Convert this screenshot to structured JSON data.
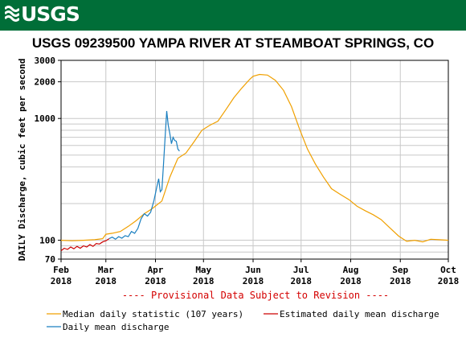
{
  "brand": {
    "logo_text": "USGS",
    "banner_color": "#006e38"
  },
  "chart_data": {
    "type": "line",
    "title": "USGS 09239500 YAMPA RIVER AT STEAMBOAT SPRINGS, CO",
    "ylabel": "DAILY Discharge, cubic feet per second",
    "xlabel": "",
    "y_scale": "log",
    "ylim": [
      70,
      3000
    ],
    "xlim": [
      "2018-02-01",
      "2018-10-01"
    ],
    "y_ticks": [
      70,
      100,
      1000,
      2000,
      3000
    ],
    "x_ticks": [
      {
        "line1": "Feb",
        "line2": "2018",
        "date": "2018-02-01"
      },
      {
        "line1": "Mar",
        "line2": "2018",
        "date": "2018-03-01"
      },
      {
        "line1": "Apr",
        "line2": "2018",
        "date": "2018-04-01"
      },
      {
        "line1": "May",
        "line2": "2018",
        "date": "2018-05-01"
      },
      {
        "line1": "Jun",
        "line2": "2018",
        "date": "2018-06-01"
      },
      {
        "line1": "Jul",
        "line2": "2018",
        "date": "2018-07-01"
      },
      {
        "line1": "Aug",
        "line2": "2018",
        "date": "2018-08-01"
      },
      {
        "line1": "Sep",
        "line2": "2018",
        "date": "2018-09-01"
      },
      {
        "line1": "Oct",
        "line2": "2018",
        "date": "2018-10-01"
      }
    ],
    "grid": true,
    "legend_position": "bottom",
    "annotation": "---- Provisional Data Subject to Revision ----",
    "series": [
      {
        "name": "Median daily statistic (107 years)",
        "color": "#f0a000",
        "points": [
          [
            "2018-02-01",
            100
          ],
          [
            "2018-02-08",
            99
          ],
          [
            "2018-02-15",
            100
          ],
          [
            "2018-02-22",
            101
          ],
          [
            "2018-02-27",
            103
          ],
          [
            "2018-03-01",
            112
          ],
          [
            "2018-03-05",
            114
          ],
          [
            "2018-03-10",
            118
          ],
          [
            "2018-03-15",
            130
          ],
          [
            "2018-03-20",
            145
          ],
          [
            "2018-03-25",
            165
          ],
          [
            "2018-03-30",
            182
          ],
          [
            "2018-04-05",
            210
          ],
          [
            "2018-04-10",
            330
          ],
          [
            "2018-04-15",
            470
          ],
          [
            "2018-04-20",
            520
          ],
          [
            "2018-04-25",
            640
          ],
          [
            "2018-04-30",
            800
          ],
          [
            "2018-05-05",
            880
          ],
          [
            "2018-05-10",
            950
          ],
          [
            "2018-05-15",
            1180
          ],
          [
            "2018-05-20",
            1480
          ],
          [
            "2018-05-25",
            1780
          ],
          [
            "2018-05-30",
            2100
          ],
          [
            "2018-06-01",
            2220
          ],
          [
            "2018-06-05",
            2300
          ],
          [
            "2018-06-10",
            2270
          ],
          [
            "2018-06-15",
            2050
          ],
          [
            "2018-06-20",
            1700
          ],
          [
            "2018-06-25",
            1250
          ],
          [
            "2018-06-30",
            820
          ],
          [
            "2018-07-05",
            560
          ],
          [
            "2018-07-10",
            420
          ],
          [
            "2018-07-15",
            330
          ],
          [
            "2018-07-20",
            265
          ],
          [
            "2018-07-25",
            240
          ],
          [
            "2018-07-31",
            215
          ],
          [
            "2018-08-05",
            190
          ],
          [
            "2018-08-10",
            175
          ],
          [
            "2018-08-15",
            162
          ],
          [
            "2018-08-20",
            148
          ],
          [
            "2018-08-25",
            128
          ],
          [
            "2018-08-31",
            108
          ],
          [
            "2018-09-05",
            98
          ],
          [
            "2018-09-10",
            100
          ],
          [
            "2018-09-15",
            97
          ],
          [
            "2018-09-20",
            102
          ],
          [
            "2018-09-25",
            101
          ],
          [
            "2018-10-01",
            100
          ]
        ]
      },
      {
        "name": "Estimated daily mean discharge",
        "color": "#cc0000",
        "points": [
          [
            "2018-02-01",
            82
          ],
          [
            "2018-02-03",
            86
          ],
          [
            "2018-02-05",
            84
          ],
          [
            "2018-02-07",
            88
          ],
          [
            "2018-02-09",
            85
          ],
          [
            "2018-02-11",
            89
          ],
          [
            "2018-02-13",
            86
          ],
          [
            "2018-02-15",
            90
          ],
          [
            "2018-02-17",
            88
          ],
          [
            "2018-02-19",
            92
          ],
          [
            "2018-02-21",
            89
          ],
          [
            "2018-02-23",
            94
          ],
          [
            "2018-02-25",
            93
          ],
          [
            "2018-02-27",
            97
          ],
          [
            "2018-03-01",
            99
          ],
          [
            "2018-03-03",
            103
          ]
        ]
      },
      {
        "name": "Daily mean discharge",
        "color": "#1a7fc0",
        "points": [
          [
            "2018-03-03",
            103
          ],
          [
            "2018-03-05",
            106
          ],
          [
            "2018-03-07",
            102
          ],
          [
            "2018-03-09",
            107
          ],
          [
            "2018-03-11",
            104
          ],
          [
            "2018-03-13",
            109
          ],
          [
            "2018-03-15",
            107
          ],
          [
            "2018-03-17",
            118
          ],
          [
            "2018-03-19",
            114
          ],
          [
            "2018-03-21",
            125
          ],
          [
            "2018-03-23",
            150
          ],
          [
            "2018-03-25",
            165
          ],
          [
            "2018-03-27",
            158
          ],
          [
            "2018-03-29",
            170
          ],
          [
            "2018-03-31",
            210
          ],
          [
            "2018-04-02",
            280
          ],
          [
            "2018-04-03",
            320
          ],
          [
            "2018-04-04",
            250
          ],
          [
            "2018-04-05",
            260
          ],
          [
            "2018-04-06",
            420
          ],
          [
            "2018-04-07",
            700
          ],
          [
            "2018-04-08",
            1150
          ],
          [
            "2018-04-09",
            880
          ],
          [
            "2018-04-10",
            750
          ],
          [
            "2018-04-11",
            620
          ],
          [
            "2018-04-12",
            700
          ],
          [
            "2018-04-13",
            660
          ],
          [
            "2018-04-14",
            650
          ],
          [
            "2018-04-15",
            560
          ],
          [
            "2018-04-16",
            540
          ]
        ]
      }
    ]
  }
}
